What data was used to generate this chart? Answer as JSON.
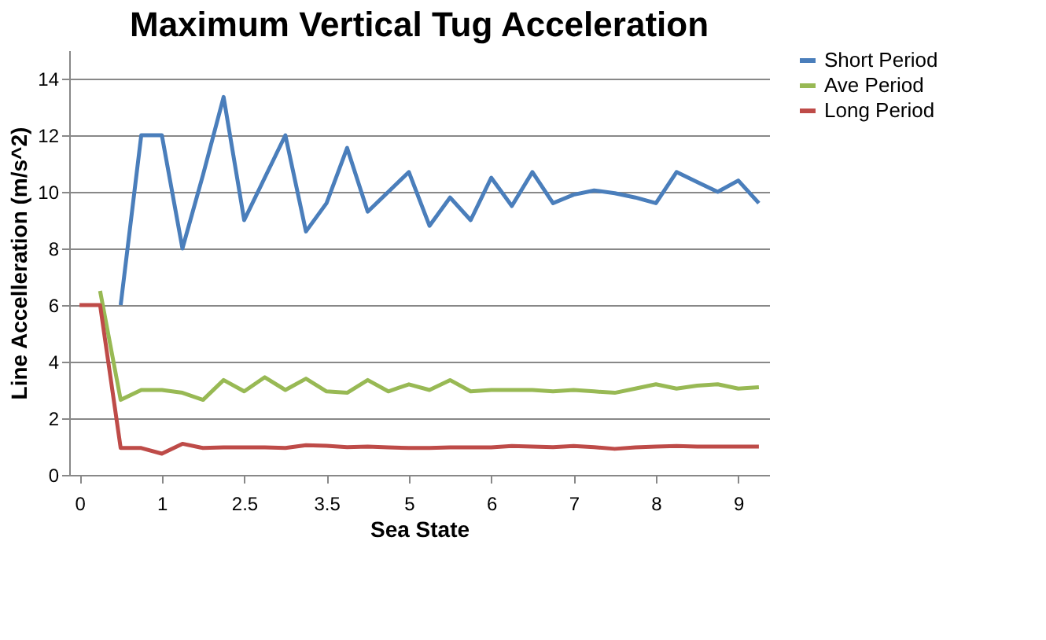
{
  "chart_data": {
    "type": "line",
    "title": "Maximum Vertical Tug Acceleration",
    "xlabel": "Sea State",
    "ylabel": "Line Accelleration (m/s^2)",
    "categories": [
      "0",
      null,
      null,
      null,
      "1",
      null,
      null,
      null,
      "2.5",
      null,
      null,
      null,
      "3.5",
      null,
      null,
      null,
      "5",
      null,
      null,
      null,
      "6",
      null,
      null,
      null,
      "7",
      null,
      null,
      null,
      "8",
      null,
      null,
      null,
      "9",
      null
    ],
    "series": [
      {
        "name": "Short Period",
        "color": "#4a7ebb",
        "values": [
          null,
          null,
          6,
          12.0,
          12.0,
          8.0,
          10.6,
          13.35,
          9.0,
          10.5,
          12.0,
          8.6,
          9.6,
          11.55,
          9.3,
          10.0,
          10.7,
          8.8,
          9.8,
          9.0,
          10.5,
          9.5,
          10.7,
          9.6,
          9.9,
          10.05,
          9.95,
          9.8,
          9.6,
          10.7,
          10.35,
          10.0,
          10.4,
          9.6
        ]
      },
      {
        "name": "Ave Period",
        "color": "#98b954",
        "values": [
          null,
          6.5,
          2.65,
          3.0,
          3.0,
          2.9,
          2.65,
          3.35,
          2.95,
          3.45,
          3.0,
          3.4,
          2.95,
          2.9,
          3.35,
          2.95,
          3.2,
          3.0,
          3.35,
          2.95,
          3.0,
          3.0,
          3.0,
          2.95,
          3.0,
          2.95,
          2.9,
          3.05,
          3.2,
          3.05,
          3.15,
          3.2,
          3.05,
          3.1
        ]
      },
      {
        "name": "Long Period",
        "color": "#be4b48",
        "values": [
          6,
          6,
          0.95,
          0.95,
          0.75,
          1.1,
          0.95,
          0.97,
          0.97,
          0.97,
          0.95,
          1.05,
          1.03,
          0.98,
          1.0,
          0.97,
          0.95,
          0.95,
          0.97,
          0.97,
          0.97,
          1.02,
          1.0,
          0.98,
          1.02,
          0.98,
          0.92,
          0.97,
          1.0,
          1.02,
          1.0,
          1.0,
          1.0,
          1.0
        ]
      }
    ],
    "ylim": [
      0,
      15
    ],
    "yticks": [
      0,
      2,
      4,
      6,
      8,
      10,
      12,
      14
    ],
    "grid": "y",
    "legend": "right",
    "marker": "none",
    "line_style": "solid"
  }
}
